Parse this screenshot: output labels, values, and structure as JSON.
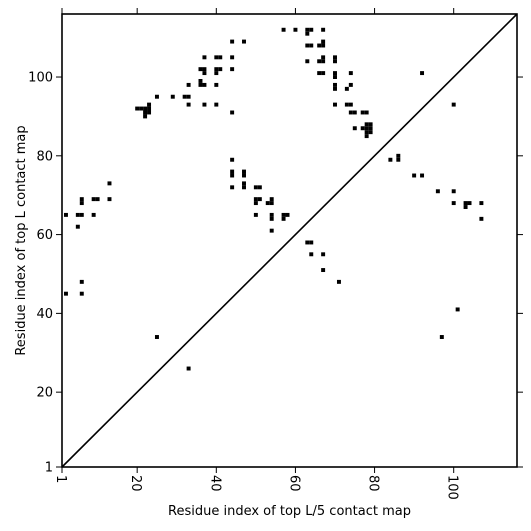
{
  "chart_data": {
    "type": "scatter",
    "title": "",
    "xlabel": "Residue index of top L/5 contact map",
    "ylabel": "Residue index of top L contact map",
    "xlim": [
      1,
      116
    ],
    "ylim": [
      1,
      116
    ],
    "xticks": [
      1,
      20,
      40,
      60,
      80,
      100
    ],
    "yticks": [
      1,
      20,
      40,
      60,
      80,
      100
    ],
    "diagonal": true,
    "grid": false,
    "colors": {
      "points": "#000000",
      "axes": "#000000",
      "diagonal": "#000000"
    },
    "points": [
      [
        2,
        45
      ],
      [
        2,
        65
      ],
      [
        5,
        62
      ],
      [
        5,
        65
      ],
      [
        6,
        65
      ],
      [
        6,
        68
      ],
      [
        6,
        69
      ],
      [
        6,
        48
      ],
      [
        6,
        45
      ],
      [
        9,
        65
      ],
      [
        9,
        69
      ],
      [
        10,
        69
      ],
      [
        13,
        69
      ],
      [
        13,
        73
      ],
      [
        20,
        92
      ],
      [
        21,
        92
      ],
      [
        22,
        92
      ],
      [
        22,
        90
      ],
      [
        22,
        91
      ],
      [
        23,
        91
      ],
      [
        23,
        92
      ],
      [
        23,
        93
      ],
      [
        25,
        95
      ],
      [
        25,
        34
      ],
      [
        29,
        95
      ],
      [
        32,
        95
      ],
      [
        33,
        95
      ],
      [
        33,
        98
      ],
      [
        33,
        93
      ],
      [
        33,
        26
      ],
      [
        36,
        99
      ],
      [
        36,
        98
      ],
      [
        36,
        102
      ],
      [
        37,
        98
      ],
      [
        37,
        102
      ],
      [
        37,
        101
      ],
      [
        37,
        105
      ],
      [
        37,
        93
      ],
      [
        40,
        93
      ],
      [
        40,
        98
      ],
      [
        40,
        101
      ],
      [
        40,
        102
      ],
      [
        40,
        105
      ],
      [
        41,
        102
      ],
      [
        41,
        105
      ],
      [
        44,
        109
      ],
      [
        44,
        105
      ],
      [
        44,
        102
      ],
      [
        44,
        91
      ],
      [
        44,
        79
      ],
      [
        44,
        76
      ],
      [
        44,
        75
      ],
      [
        44,
        72
      ],
      [
        47,
        109
      ],
      [
        47,
        76
      ],
      [
        47,
        75
      ],
      [
        47,
        73
      ],
      [
        47,
        72
      ],
      [
        50,
        72
      ],
      [
        50,
        69
      ],
      [
        50,
        68
      ],
      [
        50,
        65
      ],
      [
        51,
        72
      ],
      [
        51,
        69
      ],
      [
        53,
        68
      ],
      [
        54,
        69
      ],
      [
        54,
        68
      ],
      [
        54,
        65
      ],
      [
        54,
        64
      ],
      [
        54,
        61
      ],
      [
        57,
        112
      ],
      [
        57,
        65
      ],
      [
        57,
        64
      ],
      [
        58,
        65
      ],
      [
        60,
        112
      ],
      [
        63,
        112
      ],
      [
        63,
        111
      ],
      [
        63,
        108
      ],
      [
        63,
        104
      ],
      [
        63,
        58
      ],
      [
        64,
        112
      ],
      [
        64,
        108
      ],
      [
        64,
        58
      ],
      [
        64,
        55
      ],
      [
        66,
        108
      ],
      [
        66,
        104
      ],
      [
        66,
        101
      ],
      [
        67,
        112
      ],
      [
        67,
        109
      ],
      [
        67,
        108
      ],
      [
        67,
        105
      ],
      [
        67,
        104
      ],
      [
        67,
        101
      ],
      [
        67,
        55
      ],
      [
        67,
        51
      ],
      [
        70,
        105
      ],
      [
        70,
        104
      ],
      [
        70,
        101
      ],
      [
        70,
        100
      ],
      [
        70,
        98
      ],
      [
        70,
        97
      ],
      [
        70,
        93
      ],
      [
        71,
        48
      ],
      [
        73,
        97
      ],
      [
        73,
        93
      ],
      [
        74,
        101
      ],
      [
        74,
        98
      ],
      [
        74,
        93
      ],
      [
        74,
        91
      ],
      [
        75,
        91
      ],
      [
        75,
        87
      ],
      [
        77,
        91
      ],
      [
        77,
        87
      ],
      [
        78,
        91
      ],
      [
        78,
        88
      ],
      [
        78,
        87
      ],
      [
        78,
        86
      ],
      [
        78,
        85
      ],
      [
        79,
        88
      ],
      [
        79,
        87
      ],
      [
        79,
        86
      ],
      [
        84,
        79
      ],
      [
        86,
        80
      ],
      [
        86,
        79
      ],
      [
        90,
        75
      ],
      [
        92,
        101
      ],
      [
        92,
        75
      ],
      [
        96,
        71
      ],
      [
        97,
        34
      ],
      [
        100,
        93
      ],
      [
        100,
        71
      ],
      [
        100,
        68
      ],
      [
        101,
        41
      ],
      [
        103,
        68
      ],
      [
        103,
        67
      ],
      [
        104,
        68
      ],
      [
        107,
        68
      ],
      [
        107,
        64
      ]
    ]
  }
}
